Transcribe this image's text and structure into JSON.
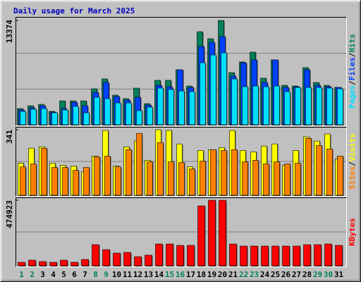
{
  "title": "Daily usage for March 2025",
  "chart_data": [
    {
      "type": "bar",
      "ylim": [
        0,
        13374
      ],
      "yticks": [
        13374
      ],
      "legend_separator": "/",
      "series": [
        {
          "name": "Hits",
          "color": "#00805c",
          "values": [
            2080,
            2440,
            2620,
            1720,
            3070,
            3070,
            3070,
            4610,
            5880,
            3800,
            3350,
            4700,
            2710,
            5700,
            5700,
            7050,
            4970,
            11930,
            11030,
            13374,
            6690,
            8050,
            9310,
            5970,
            8320,
            5060,
            4970,
            7320,
            5420,
            5060,
            4790
          ]
        },
        {
          "name": "Files",
          "color": "#0040ff",
          "values": [
            1900,
            2170,
            2440,
            1630,
            2080,
            2890,
            2440,
            4160,
            5420,
            3620,
            3160,
            3530,
            2530,
            5060,
            4880,
            7050,
            4790,
            10030,
            10580,
            11300,
            6240,
            7950,
            8320,
            5420,
            8320,
            4790,
            4880,
            7050,
            5060,
            4880,
            4790
          ]
        },
        {
          "name": "Pages",
          "color": "#00e0ff",
          "values": [
            1720,
            1990,
            2080,
            1540,
            1900,
            2350,
            1540,
            3530,
            3350,
            2800,
            2800,
            1810,
            2260,
            4700,
            4520,
            4340,
            4250,
            7950,
            8950,
            9220,
            5880,
            4880,
            4970,
            4880,
            4970,
            4250,
            4790,
            4790,
            4790,
            4700,
            4610
          ]
        }
      ]
    },
    {
      "type": "bar",
      "ylim": [
        0,
        341
      ],
      "yticks": [
        341
      ],
      "legend_separator": "/",
      "series": [
        {
          "name": "Visits",
          "color": "#ffff00",
          "values": [
            167,
            245,
            252,
            167,
            156,
            152,
            122,
            204,
            337,
            152,
            252,
            282,
            182,
            341,
            337,
            267,
            148,
            233,
            237,
            248,
            337,
            233,
            226,
            256,
            267,
            156,
            233,
            304,
            282,
            319,
            189
          ]
        },
        {
          "name": "Sites",
          "color": "#ff8000",
          "values": [
            148,
            163,
            245,
            145,
            145,
            130,
            145,
            200,
            204,
            148,
            237,
            322,
            174,
            274,
            174,
            170,
            137,
            178,
            237,
            233,
            237,
            174,
            182,
            163,
            174,
            163,
            167,
            296,
            259,
            241,
            204
          ]
        }
      ]
    },
    {
      "type": "bar",
      "ylim": [
        0,
        474923
      ],
      "yticks": [
        474923
      ],
      "categories": [
        "1",
        "2",
        "3",
        "4",
        "5",
        "6",
        "7",
        "8",
        "9",
        "10",
        "11",
        "12",
        "13",
        "14",
        "15",
        "16",
        "17",
        "18",
        "19",
        "20",
        "21",
        "22",
        "23",
        "24",
        "25",
        "26",
        "27",
        "28",
        "29",
        "30",
        "31"
      ],
      "weekend_color": "#00805c",
      "weekends": [
        0,
        1,
        7,
        8,
        14,
        15,
        21,
        22,
        28,
        29
      ],
      "series": [
        {
          "name": "KBytes",
          "color": "#ff0000",
          "values": [
            25500,
            40900,
            30600,
            25500,
            40900,
            25500,
            46000,
            153000,
            117000,
            92000,
            97000,
            66000,
            77000,
            158000,
            158000,
            148000,
            148000,
            434000,
            474923,
            474923,
            158000,
            143000,
            143000,
            143000,
            143000,
            143000,
            143000,
            153000,
            153000,
            158000,
            148000
          ]
        }
      ]
    }
  ]
}
